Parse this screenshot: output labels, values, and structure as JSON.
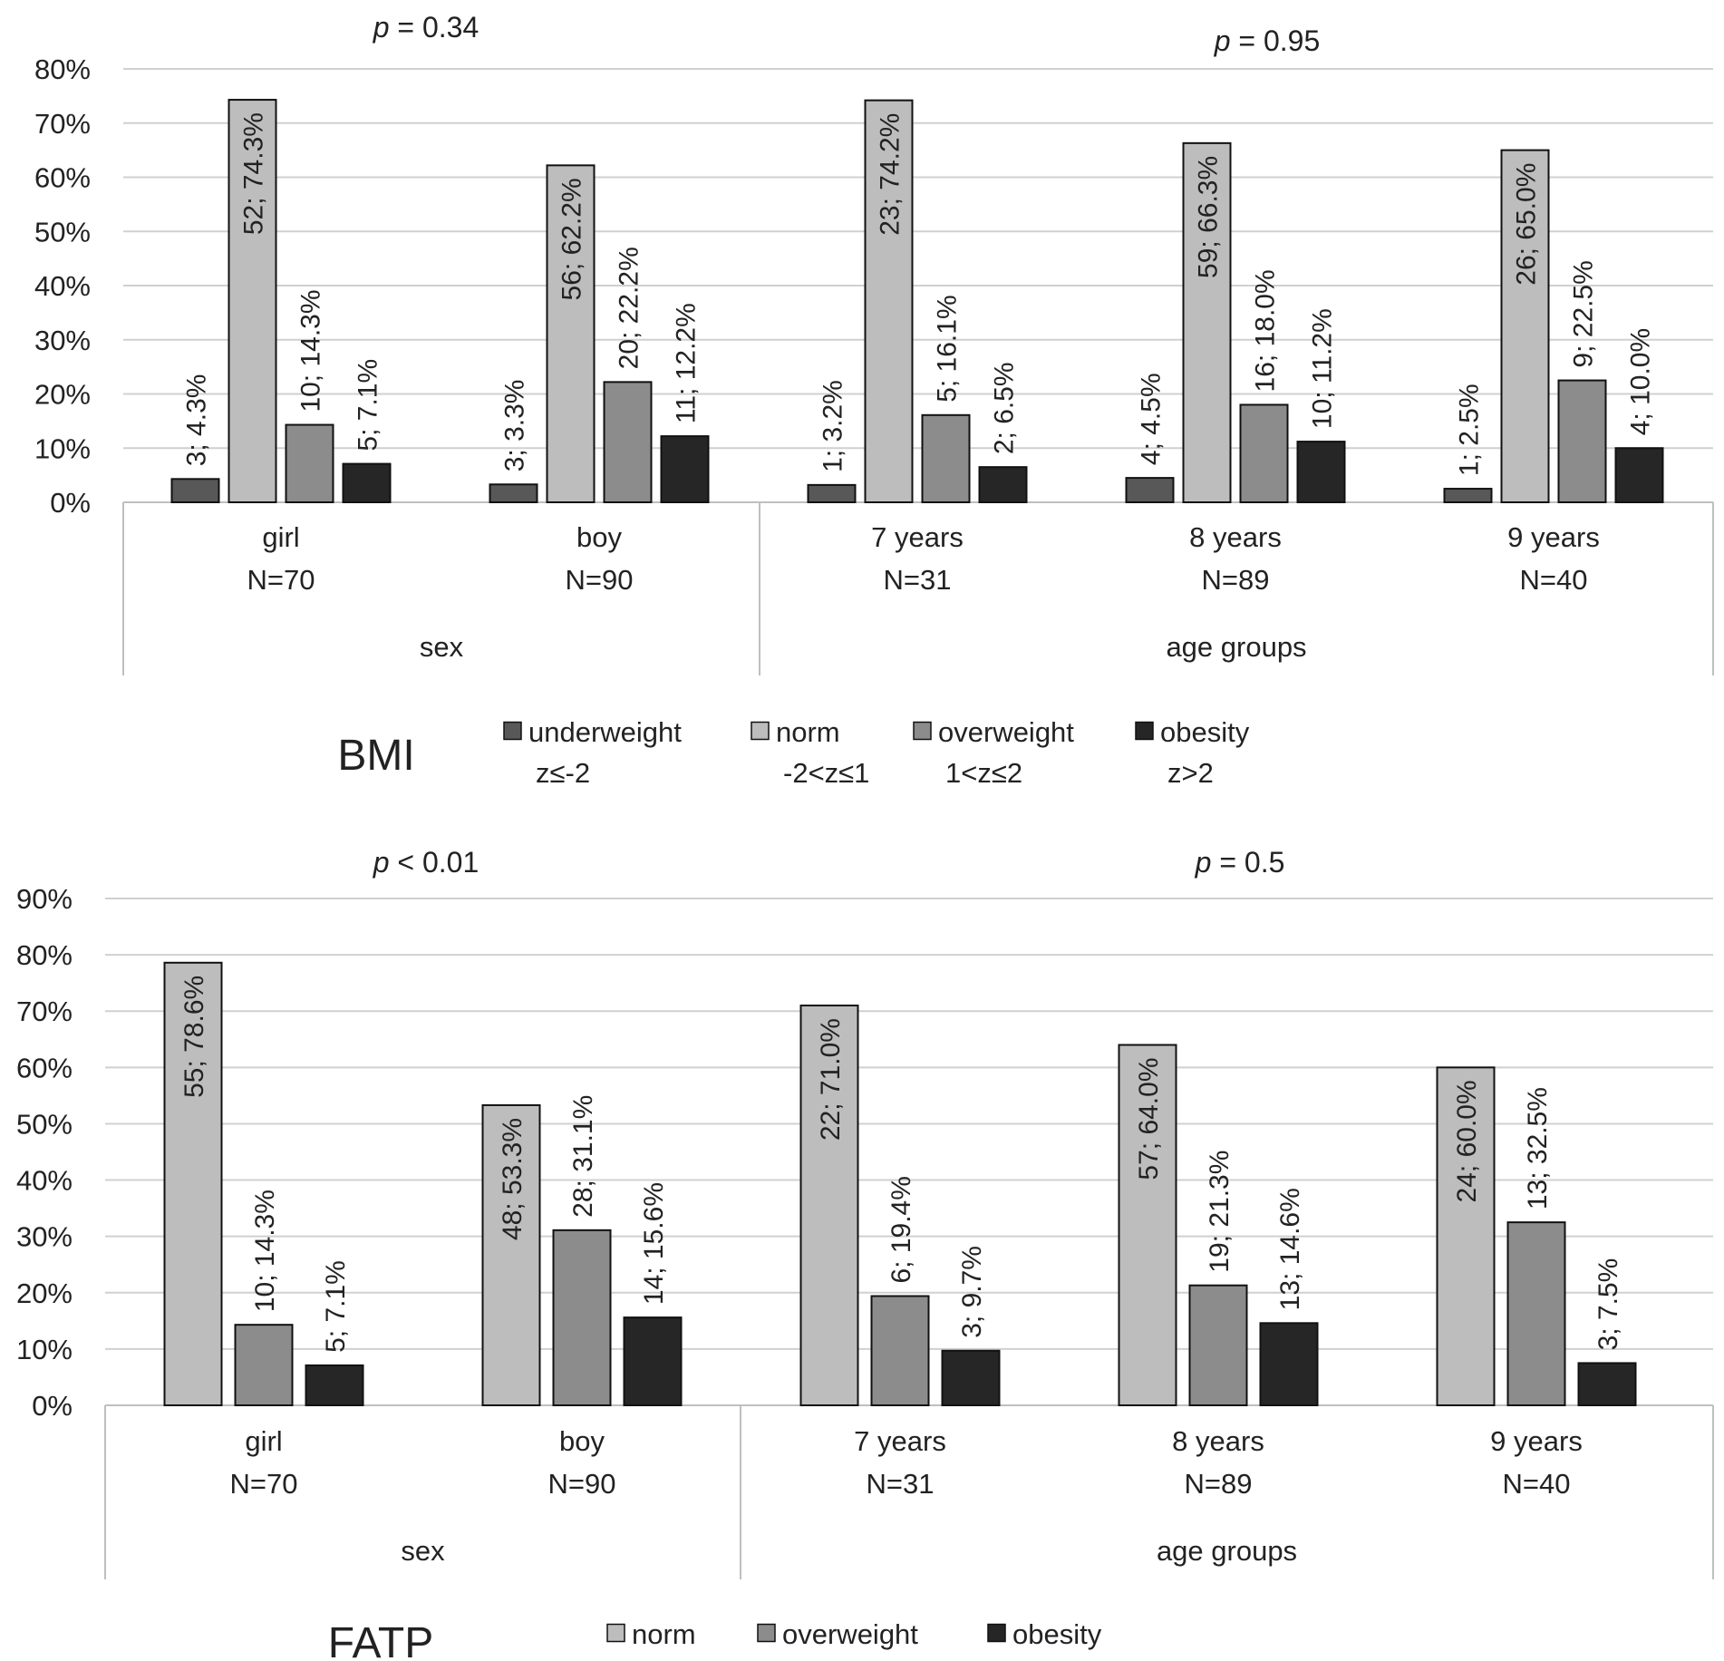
{
  "chart_data": [
    {
      "type": "bar",
      "title": "BMI",
      "ylim": [
        0,
        80
      ],
      "ytick_step": 10,
      "ytick_format": "%",
      "grid": true,
      "groups": [
        {
          "label": "sex",
          "p_value": "p = 0.34",
          "p_symbol": "p",
          "p_rest": " = 0.34",
          "categories": [
            "girl",
            "boy"
          ]
        },
        {
          "label": "age groups",
          "p_value": "p = 0.95",
          "p_symbol": "p",
          "p_rest": " = 0.95",
          "categories": [
            "7 years",
            "8 years",
            "9 years"
          ]
        }
      ],
      "categories": [
        {
          "name": "girl",
          "n": "N=70"
        },
        {
          "name": "boy",
          "n": "N=90"
        },
        {
          "name": "7 years",
          "n": "N=31"
        },
        {
          "name": "8 years",
          "n": "N=89"
        },
        {
          "name": "9 years",
          "n": "N=40"
        }
      ],
      "series": [
        {
          "name": "underweight",
          "sub": "z≤-2",
          "color": "#585858",
          "values": [
            4.3,
            3.3,
            3.2,
            4.5,
            2.5
          ],
          "labels": [
            "3; 4.3%",
            "3; 3.3%",
            "1; 3.2%",
            "4; 4.5%",
            "1; 2.5%"
          ]
        },
        {
          "name": "norm",
          "sub": "-2<z≤1",
          "color": "#bdbdbd",
          "values": [
            74.3,
            62.2,
            74.2,
            66.3,
            65.0
          ],
          "labels": [
            "52; 74.3%",
            "56; 62.2%",
            "23; 74.2%",
            "59; 66.3%",
            "26; 65.0%"
          ]
        },
        {
          "name": "overweight",
          "sub": "1<z≤2",
          "color": "#8c8c8c",
          "values": [
            14.3,
            22.2,
            16.1,
            18.0,
            22.5
          ],
          "labels": [
            "10; 14.3%",
            "20; 22.2%",
            "5; 16.1%",
            "16; 18.0%",
            "9; 22.5%"
          ]
        },
        {
          "name": "obesity",
          "sub": "z>2",
          "color": "#262626",
          "values": [
            7.1,
            12.2,
            6.5,
            11.2,
            10.0
          ],
          "labels": [
            "5; 7.1%",
            "11; 12.2%",
            "2; 6.5%",
            "10; 11.2%",
            "4; 10.0%"
          ]
        }
      ]
    },
    {
      "type": "bar",
      "title": "FATP",
      "ylim": [
        0,
        90
      ],
      "ytick_step": 10,
      "ytick_format": "%",
      "grid": true,
      "groups": [
        {
          "label": "sex",
          "p_value": "p < 0.01",
          "p_symbol": "p",
          "p_rest": " < 0.01",
          "categories": [
            "girl",
            "boy"
          ]
        },
        {
          "label": "age groups",
          "p_value": "p = 0.5",
          "p_symbol": "p",
          "p_rest": " = 0.5",
          "categories": [
            "7 years",
            "8 years",
            "9 years"
          ]
        }
      ],
      "categories": [
        {
          "name": "girl",
          "n": "N=70"
        },
        {
          "name": "boy",
          "n": "N=90"
        },
        {
          "name": "7 years",
          "n": "N=31"
        },
        {
          "name": "8 years",
          "n": "N=89"
        },
        {
          "name": "9 years",
          "n": "N=40"
        }
      ],
      "series": [
        {
          "name": "norm",
          "sub": "",
          "color": "#bdbdbd",
          "values": [
            78.6,
            53.3,
            71.0,
            64.0,
            60.0
          ],
          "labels": [
            "55; 78.6%",
            "48; 53.3%",
            "22; 71.0%",
            "57; 64.0%",
            "24; 60.0%"
          ]
        },
        {
          "name": "overweight",
          "sub": "",
          "color": "#8c8c8c",
          "values": [
            14.3,
            31.1,
            19.4,
            21.3,
            32.5
          ],
          "labels": [
            "10; 14.3%",
            "28; 31.1%",
            "6; 19.4%",
            "19; 21.3%",
            "13; 32.5%"
          ]
        },
        {
          "name": "obesity",
          "sub": "",
          "color": "#262626",
          "values": [
            7.1,
            15.6,
            9.7,
            14.6,
            7.5
          ],
          "labels": [
            "5; 7.1%",
            "14; 15.6%",
            "3; 9.7%",
            "13; 14.6%",
            "3; 7.5%"
          ]
        }
      ]
    }
  ]
}
